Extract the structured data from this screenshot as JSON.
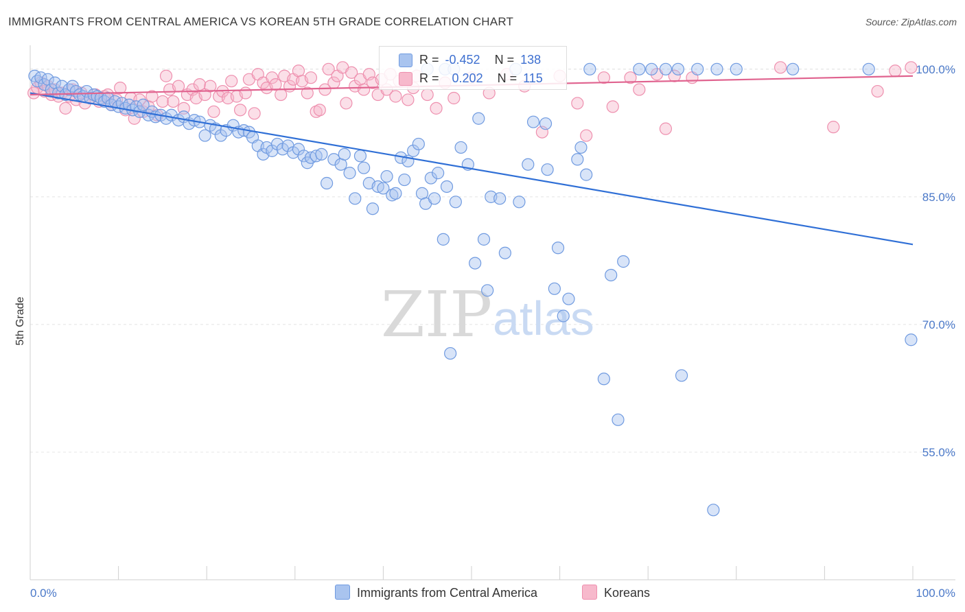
{
  "title": "IMMIGRANTS FROM CENTRAL AMERICA VS KOREAN 5TH GRADE CORRELATION CHART",
  "source": "Source: ZipAtlas.com",
  "watermark": {
    "zip": "ZIP",
    "atlas": "atlas"
  },
  "legend": {
    "rows": [
      {
        "r_label": "R =",
        "r_value": "-0.452",
        "n_label": "N =",
        "n_value": "138",
        "color": "#a9c4ef",
        "border": "#6f9ae0"
      },
      {
        "r_label": "R =",
        "r_value": "0.202",
        "n_label": "N =",
        "n_value": "115",
        "color": "#f7b9cc",
        "border": "#ee8fae"
      }
    ]
  },
  "bottom_legend": [
    {
      "label": "Immigrants from Central America",
      "color": "#a9c4ef",
      "border": "#6f9ae0"
    },
    {
      "label": "Koreans",
      "color": "#f7b9cc",
      "border": "#ee8fae"
    }
  ],
  "chart_data": {
    "type": "scatter",
    "title": "IMMIGRANTS FROM CENTRAL AMERICA VS KOREAN 5TH GRADE CORRELATION CHART",
    "xlabel": "",
    "ylabel": "5th Grade",
    "xlim": [
      0,
      100
    ],
    "ylim": [
      40,
      102
    ],
    "x_ticks": [
      "0.0%",
      "100.0%"
    ],
    "y_ticks": [
      {
        "value": 100,
        "label": "100.0%"
      },
      {
        "value": 85,
        "label": "85.0%"
      },
      {
        "value": 70,
        "label": "70.0%"
      },
      {
        "value": 55,
        "label": "55.0%"
      }
    ],
    "grid": true,
    "series": [
      {
        "name": "Immigrants from Central America",
        "color": "#6f9ae0",
        "fill": "rgba(169,196,239,0.45)",
        "trend": {
          "x": [
            0,
            100
          ],
          "y": [
            97.2,
            79.4
          ],
          "color": "#2f6fd6"
        },
        "points": [
          [
            0.5,
            99.2
          ],
          [
            0.8,
            98.6
          ],
          [
            1.2,
            99.0
          ],
          [
            1.6,
            98.2
          ],
          [
            2.0,
            98.8
          ],
          [
            2.4,
            97.6
          ],
          [
            2.8,
            98.4
          ],
          [
            3.2,
            97.2
          ],
          [
            3.6,
            98.0
          ],
          [
            4.0,
            97.0
          ],
          [
            4.4,
            97.6
          ],
          [
            4.8,
            98.0
          ],
          [
            5.2,
            97.4
          ],
          [
            5.6,
            97.0
          ],
          [
            6.0,
            96.8
          ],
          [
            6.4,
            97.4
          ],
          [
            6.8,
            96.6
          ],
          [
            7.2,
            97.0
          ],
          [
            7.6,
            96.8
          ],
          [
            8.0,
            96.6
          ],
          [
            8.4,
            96.2
          ],
          [
            8.8,
            96.6
          ],
          [
            9.2,
            95.8
          ],
          [
            9.6,
            96.2
          ],
          [
            10.0,
            95.6
          ],
          [
            10.4,
            96.0
          ],
          [
            10.8,
            95.4
          ],
          [
            11.2,
            95.8
          ],
          [
            11.6,
            95.2
          ],
          [
            12.0,
            95.6
          ],
          [
            12.4,
            95.0
          ],
          [
            12.8,
            95.8
          ],
          [
            13.4,
            94.6
          ],
          [
            13.8,
            95.0
          ],
          [
            14.2,
            94.4
          ],
          [
            14.8,
            94.6
          ],
          [
            15.4,
            94.2
          ],
          [
            16.0,
            94.6
          ],
          [
            16.8,
            94.0
          ],
          [
            17.4,
            94.4
          ],
          [
            18.0,
            93.6
          ],
          [
            18.6,
            94.0
          ],
          [
            19.2,
            93.8
          ],
          [
            19.8,
            92.2
          ],
          [
            20.4,
            93.4
          ],
          [
            21.0,
            93.0
          ],
          [
            21.6,
            92.2
          ],
          [
            22.2,
            92.8
          ],
          [
            23.0,
            93.4
          ],
          [
            23.6,
            92.6
          ],
          [
            24.2,
            92.8
          ],
          [
            24.8,
            92.6
          ],
          [
            25.2,
            92.0
          ],
          [
            25.8,
            91.0
          ],
          [
            26.4,
            90.0
          ],
          [
            26.8,
            90.8
          ],
          [
            27.4,
            90.4
          ],
          [
            28.0,
            91.2
          ],
          [
            28.6,
            90.6
          ],
          [
            29.2,
            91.0
          ],
          [
            29.8,
            90.2
          ],
          [
            30.4,
            90.6
          ],
          [
            31.0,
            89.8
          ],
          [
            31.4,
            89.0
          ],
          [
            31.8,
            89.6
          ],
          [
            32.4,
            89.8
          ],
          [
            33.0,
            90.0
          ],
          [
            33.6,
            86.6
          ],
          [
            34.4,
            89.4
          ],
          [
            35.2,
            88.8
          ],
          [
            35.6,
            90.0
          ],
          [
            36.2,
            87.8
          ],
          [
            36.8,
            84.8
          ],
          [
            37.4,
            89.8
          ],
          [
            37.8,
            88.4
          ],
          [
            38.4,
            86.6
          ],
          [
            38.8,
            83.6
          ],
          [
            39.4,
            86.2
          ],
          [
            40.0,
            86.0
          ],
          [
            40.4,
            87.4
          ],
          [
            41.0,
            85.2
          ],
          [
            41.4,
            85.4
          ],
          [
            42.0,
            89.6
          ],
          [
            42.4,
            87.0
          ],
          [
            42.8,
            89.2
          ],
          [
            43.4,
            90.4
          ],
          [
            44.0,
            91.2
          ],
          [
            44.4,
            85.4
          ],
          [
            44.8,
            84.2
          ],
          [
            45.4,
            87.2
          ],
          [
            45.8,
            84.8
          ],
          [
            46.2,
            87.8
          ],
          [
            46.8,
            80.0
          ],
          [
            47.2,
            86.2
          ],
          [
            47.6,
            66.6
          ],
          [
            48.2,
            84.4
          ],
          [
            48.8,
            90.8
          ],
          [
            49.6,
            88.8
          ],
          [
            50.4,
            77.2
          ],
          [
            50.8,
            94.2
          ],
          [
            51.4,
            80.0
          ],
          [
            51.8,
            74.0
          ],
          [
            52.2,
            85.0
          ],
          [
            53.2,
            84.8
          ],
          [
            53.8,
            78.4
          ],
          [
            55.4,
            84.4
          ],
          [
            56.4,
            88.8
          ],
          [
            57.0,
            93.8
          ],
          [
            58.4,
            93.6
          ],
          [
            58.6,
            88.2
          ],
          [
            59.4,
            74.2
          ],
          [
            59.8,
            79.0
          ],
          [
            60.4,
            71.0
          ],
          [
            61.0,
            73.0
          ],
          [
            62.0,
            89.4
          ],
          [
            62.4,
            90.8
          ],
          [
            63.0,
            87.6
          ],
          [
            63.4,
            100.0
          ],
          [
            65.0,
            63.6
          ],
          [
            65.8,
            75.8
          ],
          [
            66.6,
            58.8
          ],
          [
            67.2,
            77.4
          ],
          [
            69.0,
            100.0
          ],
          [
            70.4,
            100.0
          ],
          [
            72.0,
            100.0
          ],
          [
            73.4,
            100.0
          ],
          [
            73.8,
            64.0
          ],
          [
            75.6,
            100.0
          ],
          [
            77.4,
            48.2
          ],
          [
            77.8,
            100.0
          ],
          [
            80.0,
            100.0
          ],
          [
            86.4,
            100.0
          ],
          [
            95.0,
            100.0
          ],
          [
            99.8,
            68.2
          ],
          [
            45.0,
            100.0
          ],
          [
            47.0,
            100.0
          ],
          [
            48.0,
            100.0
          ],
          [
            55.0,
            100.0
          ]
        ]
      },
      {
        "name": "Koreans",
        "color": "#ee8fae",
        "fill": "rgba(247,185,204,0.45)",
        "trend": {
          "x": [
            0,
            100
          ],
          "y": [
            97.0,
            99.2
          ],
          "color": "#e0638f"
        },
        "points": [
          [
            0.4,
            97.2
          ],
          [
            0.8,
            97.8
          ],
          [
            1.2,
            98.4
          ],
          [
            1.6,
            97.4
          ],
          [
            2.0,
            98.0
          ],
          [
            2.4,
            97.0
          ],
          [
            2.8,
            97.6
          ],
          [
            3.2,
            96.8
          ],
          [
            3.6,
            97.2
          ],
          [
            4.0,
            95.4
          ],
          [
            4.4,
            96.8
          ],
          [
            4.8,
            97.6
          ],
          [
            5.2,
            96.4
          ],
          [
            5.8,
            97.2
          ],
          [
            6.2,
            96.0
          ],
          [
            6.8,
            96.6
          ],
          [
            7.4,
            97.0
          ],
          [
            7.8,
            96.2
          ],
          [
            8.4,
            96.8
          ],
          [
            8.8,
            97.0
          ],
          [
            9.2,
            95.8
          ],
          [
            9.8,
            96.4
          ],
          [
            10.2,
            97.8
          ],
          [
            10.8,
            95.2
          ],
          [
            11.4,
            96.6
          ],
          [
            11.8,
            94.2
          ],
          [
            12.4,
            96.4
          ],
          [
            12.8,
            95.0
          ],
          [
            13.4,
            95.6
          ],
          [
            13.8,
            96.8
          ],
          [
            14.4,
            94.6
          ],
          [
            15.0,
            96.2
          ],
          [
            15.4,
            99.2
          ],
          [
            15.8,
            97.6
          ],
          [
            16.2,
            96.2
          ],
          [
            16.8,
            98.0
          ],
          [
            17.4,
            95.4
          ],
          [
            17.8,
            97.0
          ],
          [
            18.4,
            97.6
          ],
          [
            18.8,
            96.6
          ],
          [
            19.2,
            98.2
          ],
          [
            19.8,
            97.0
          ],
          [
            20.4,
            98.0
          ],
          [
            20.8,
            95.0
          ],
          [
            21.4,
            96.8
          ],
          [
            21.8,
            97.4
          ],
          [
            22.4,
            96.6
          ],
          [
            22.8,
            98.6
          ],
          [
            23.4,
            96.8
          ],
          [
            23.8,
            95.2
          ],
          [
            24.4,
            97.2
          ],
          [
            24.8,
            98.8
          ],
          [
            25.4,
            94.8
          ],
          [
            25.8,
            99.4
          ],
          [
            26.4,
            98.4
          ],
          [
            26.8,
            97.8
          ],
          [
            27.4,
            99.0
          ],
          [
            27.8,
            98.2
          ],
          [
            28.4,
            97.0
          ],
          [
            28.8,
            99.2
          ],
          [
            29.4,
            98.0
          ],
          [
            29.8,
            98.8
          ],
          [
            30.4,
            99.8
          ],
          [
            30.8,
            98.6
          ],
          [
            31.4,
            97.2
          ],
          [
            31.8,
            99.0
          ],
          [
            32.4,
            95.0
          ],
          [
            32.8,
            95.2
          ],
          [
            33.4,
            97.6
          ],
          [
            33.8,
            100.0
          ],
          [
            34.4,
            98.4
          ],
          [
            34.8,
            99.2
          ],
          [
            35.4,
            100.2
          ],
          [
            35.8,
            96.0
          ],
          [
            36.4,
            99.6
          ],
          [
            36.8,
            98.0
          ],
          [
            37.4,
            98.8
          ],
          [
            37.8,
            97.6
          ],
          [
            38.4,
            99.4
          ],
          [
            38.8,
            98.4
          ],
          [
            39.4,
            97.0
          ],
          [
            39.8,
            98.8
          ],
          [
            40.4,
            97.6
          ],
          [
            40.8,
            99.4
          ],
          [
            41.4,
            96.8
          ],
          [
            41.8,
            98.6
          ],
          [
            42.4,
            99.0
          ],
          [
            42.8,
            96.4
          ],
          [
            43.4,
            97.8
          ],
          [
            43.8,
            99.2
          ],
          [
            45.0,
            97.0
          ],
          [
            46.0,
            95.4
          ],
          [
            47.0,
            98.4
          ],
          [
            48.0,
            96.6
          ],
          [
            50.0,
            99.0
          ],
          [
            52.0,
            97.2
          ],
          [
            54.0,
            99.4
          ],
          [
            56.0,
            98.0
          ],
          [
            58.0,
            92.6
          ],
          [
            60.0,
            99.2
          ],
          [
            62.0,
            96.0
          ],
          [
            63.0,
            92.2
          ],
          [
            65.0,
            99.0
          ],
          [
            66.0,
            95.6
          ],
          [
            68.0,
            99.0
          ],
          [
            69.0,
            97.6
          ],
          [
            71.0,
            99.4
          ],
          [
            72.0,
            93.0
          ],
          [
            73.0,
            99.2
          ],
          [
            75.0,
            99.0
          ],
          [
            85.0,
            100.2
          ],
          [
            91.0,
            93.2
          ],
          [
            96.0,
            97.4
          ],
          [
            98.0,
            99.8
          ],
          [
            99.8,
            100.2
          ]
        ]
      }
    ]
  }
}
